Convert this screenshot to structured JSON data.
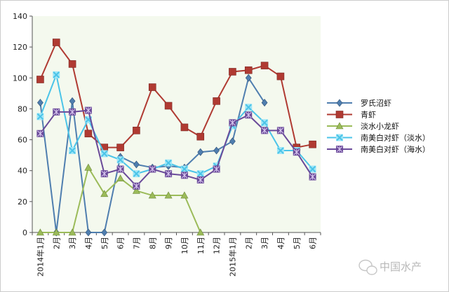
{
  "chart_data": {
    "type": "line",
    "categories": [
      "2014年1月",
      "2月",
      "3月",
      "4月",
      "5月",
      "6月",
      "7月",
      "8月",
      "9月",
      "10月",
      "11月",
      "12月",
      "2015年1月",
      "2月",
      "3月",
      "4月",
      "5月",
      "6月"
    ],
    "ylim": [
      0,
      140
    ],
    "yticks": [
      0,
      20,
      40,
      60,
      80,
      100,
      120,
      140
    ],
    "grid": false,
    "legend_position": "right",
    "plot_background": "#f4f9ee",
    "series": [
      {
        "name": "罗氏沼虾",
        "color": "#4f7eaf",
        "marker": "diamond",
        "values": [
          84,
          0,
          85,
          0,
          0,
          49,
          44,
          42,
          43,
          42,
          52,
          53,
          59,
          100,
          84,
          null,
          null,
          null
        ]
      },
      {
        "name": "青虾",
        "color": "#b03a32",
        "marker": "square",
        "values": [
          99,
          123,
          109,
          64,
          55,
          55,
          66,
          94,
          82,
          68,
          62,
          85,
          104,
          105,
          108,
          101,
          55,
          57
        ]
      },
      {
        "name": "淡水小龙虾",
        "color": "#9bbb59",
        "marker": "triangle",
        "values": [
          0,
          0,
          0,
          42,
          25,
          35,
          27,
          24,
          24,
          24,
          0,
          null,
          null,
          null,
          null,
          null,
          null,
          null
        ]
      },
      {
        "name": "南美白对虾（淡水）",
        "color": "#4bc4e8",
        "marker": "x",
        "values": [
          75,
          102,
          53,
          73,
          51,
          47,
          38,
          41,
          45,
          41,
          38,
          43,
          69,
          81,
          71,
          53,
          53,
          41
        ]
      },
      {
        "name": "南美白对虾（海水）",
        "color": "#6a4a99",
        "marker": "star",
        "values": [
          64,
          78,
          78,
          79,
          38,
          41,
          30,
          41,
          38,
          37,
          34,
          41,
          71,
          76,
          66,
          66,
          52,
          36
        ]
      }
    ]
  },
  "watermark": {
    "text": "中国水产"
  }
}
